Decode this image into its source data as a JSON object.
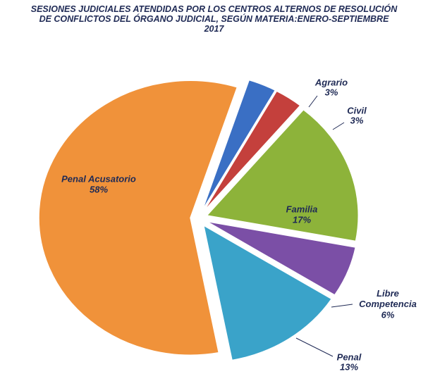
{
  "chart_data": {
    "type": "pie",
    "title": "SESIONES JUDICIALES ATENDIDAS POR LOS CENTROS ALTERNOS DE RESOLUCIÓN DE CONFLICTOS DEL ÓRGANO JUDICIAL, SEGÚN MATERIA:ENERO-SEPTIEMBRE 2017",
    "categories": [
      "Agrario",
      "Civil",
      "Familia",
      "Libre Competencia",
      "Penal",
      "Penal Acusatorio"
    ],
    "values": [
      3,
      3,
      17,
      6,
      13,
      58
    ],
    "value_labels": [
      "3%",
      "3%",
      "17%",
      "6%",
      "13%",
      "58%"
    ],
    "colors": [
      "#3a6fc4",
      "#c4403c",
      "#8db33a",
      "#7b4fa6",
      "#3aa3c9",
      "#f0923a"
    ]
  }
}
